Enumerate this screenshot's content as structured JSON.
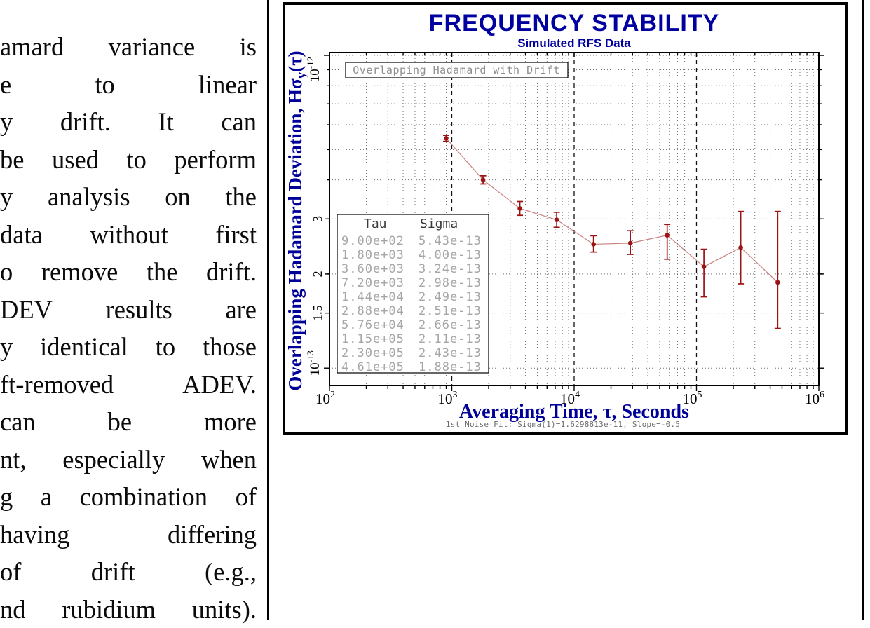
{
  "page": {
    "left_text_lines": [
      "amard variance is",
      "e to linear",
      "y drift. It can",
      "be used to perform",
      "y analysis on the",
      "data without first",
      "o remove the drift.",
      "DEV results are",
      "y identical to those",
      "ft-removed ADEV.",
      "can be more",
      "nt, especially when",
      "g a combination of",
      "having differing",
      "of drift (e.g.,",
      "nd rubidium units)."
    ]
  },
  "chart": {
    "title": "FREQUENCY STABILITY",
    "subtitle": "Simulated RFS Data",
    "legend_label": "Overlapping Hadamard with Drift",
    "fit_text": "1st Noise Fit: Sigma(1)=1.6298813e-11, Slope=-0.5",
    "x_axis": {
      "title": "Averaging Time, τ, Seconds",
      "ticks": [
        {
          "value": 100,
          "label": "10^2"
        },
        {
          "value": 1000,
          "label": "10^3"
        },
        {
          "value": 10000,
          "label": "10^4"
        },
        {
          "value": 100000,
          "label": "10^5"
        },
        {
          "value": 1000000,
          "label": "10^6"
        }
      ]
    },
    "y_axis": {
      "title_main": "Overlapping Hadamard Deviation, Hσ",
      "title_sub": "y",
      "title_tail": "(τ)",
      "ticks": [
        {
          "value": 1e-12,
          "label": "10^-12"
        },
        {
          "value": 3e-13,
          "label": "3"
        },
        {
          "value": 2e-13,
          "label": "2"
        },
        {
          "value": 1.5e-13,
          "label": "1.5"
        },
        {
          "value": 1e-13,
          "label": "10^-13"
        }
      ]
    },
    "table": {
      "headers": [
        "Tau",
        "Sigma"
      ],
      "rows": [
        [
          "9.00e+02",
          "5.43e-13"
        ],
        [
          "1.80e+03",
          "4.00e-13"
        ],
        [
          "3.60e+03",
          "3.24e-13"
        ],
        [
          "7.20e+03",
          "2.98e-13"
        ],
        [
          "1.44e+04",
          "2.49e-13"
        ],
        [
          "2.88e+04",
          "2.51e-13"
        ],
        [
          "5.76e+04",
          "2.66e-13"
        ],
        [
          "1.15e+05",
          "2.11e-13"
        ],
        [
          "2.30e+05",
          "2.43e-13"
        ],
        [
          "4.61e+05",
          "1.88e-13"
        ]
      ]
    },
    "colors": {
      "navy_title": "#0000a0",
      "navy_label": "#000099",
      "marker": "#9b1313",
      "line": "#c97f7f",
      "gray_table_text": "#a6a6a6",
      "gray_legend_text": "#8f8f8f",
      "gray_fit_text": "#6b6b6b",
      "header_text": "#3a3a3a"
    }
  },
  "chart_data": {
    "type": "line",
    "title": "FREQUENCY STABILITY",
    "subtitle": "Simulated RFS Data",
    "xlabel": "Averaging Time, τ, Seconds",
    "ylabel": "Overlapping Hadamard Deviation, Hσy(τ)",
    "legend": [
      "Overlapping Hadamard with Drift"
    ],
    "annotation": "1st Noise Fit: Sigma(1)=1.6298813e-11, Slope=-0.5",
    "xscale": "log",
    "yscale": "log",
    "grid": true,
    "xlim": [
      100,
      1000000
    ],
    "ylim": [
      8.8e-14,
      1.021e-12
    ],
    "x": [
      900,
      1800,
      3600,
      7200,
      14400,
      28800,
      57600,
      115000,
      230000,
      461000
    ],
    "y": [
      5.43e-13,
      4e-13,
      3.24e-13,
      2.98e-13,
      2.49e-13,
      2.51e-13,
      2.66e-13,
      2.11e-13,
      2.43e-13,
      1.88e-13
    ],
    "err_lo": [
      5.31e-13,
      3.88e-13,
      3.08e-13,
      2.82e-13,
      2.35e-13,
      2.31e-13,
      2.23e-13,
      1.69e-13,
      1.86e-13,
      1.34e-13
    ],
    "err_hi": [
      5.55e-13,
      4.12e-13,
      3.41e-13,
      3.15e-13,
      2.65e-13,
      2.75e-13,
      2.88e-13,
      2.4e-13,
      3.17e-13,
      3.17e-13
    ]
  }
}
